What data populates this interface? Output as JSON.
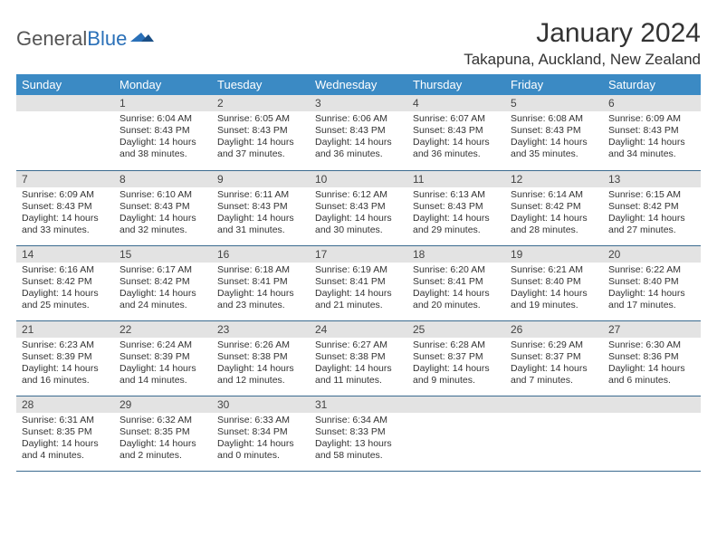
{
  "brand": {
    "part1": "General",
    "part2": "Blue"
  },
  "title": "January 2024",
  "location": "Takapuna, Auckland, New Zealand",
  "colors": {
    "header_bg": "#3b8ac4",
    "header_text": "#ffffff",
    "daynum_bg": "#e3e3e3",
    "row_border": "#3b6b8f",
    "brand_gray": "#555555",
    "brand_blue": "#2a70b8",
    "text": "#333333",
    "page_bg": "#ffffff"
  },
  "weekdays": [
    "Sunday",
    "Monday",
    "Tuesday",
    "Wednesday",
    "Thursday",
    "Friday",
    "Saturday"
  ],
  "weeks": [
    [
      {
        "n": ""
      },
      {
        "n": "1",
        "sr": "6:04 AM",
        "ss": "8:43 PM",
        "dl": "14 hours and 38 minutes."
      },
      {
        "n": "2",
        "sr": "6:05 AM",
        "ss": "8:43 PM",
        "dl": "14 hours and 37 minutes."
      },
      {
        "n": "3",
        "sr": "6:06 AM",
        "ss": "8:43 PM",
        "dl": "14 hours and 36 minutes."
      },
      {
        "n": "4",
        "sr": "6:07 AM",
        "ss": "8:43 PM",
        "dl": "14 hours and 36 minutes."
      },
      {
        "n": "5",
        "sr": "6:08 AM",
        "ss": "8:43 PM",
        "dl": "14 hours and 35 minutes."
      },
      {
        "n": "6",
        "sr": "6:09 AM",
        "ss": "8:43 PM",
        "dl": "14 hours and 34 minutes."
      }
    ],
    [
      {
        "n": "7",
        "sr": "6:09 AM",
        "ss": "8:43 PM",
        "dl": "14 hours and 33 minutes."
      },
      {
        "n": "8",
        "sr": "6:10 AM",
        "ss": "8:43 PM",
        "dl": "14 hours and 32 minutes."
      },
      {
        "n": "9",
        "sr": "6:11 AM",
        "ss": "8:43 PM",
        "dl": "14 hours and 31 minutes."
      },
      {
        "n": "10",
        "sr": "6:12 AM",
        "ss": "8:43 PM",
        "dl": "14 hours and 30 minutes."
      },
      {
        "n": "11",
        "sr": "6:13 AM",
        "ss": "8:43 PM",
        "dl": "14 hours and 29 minutes."
      },
      {
        "n": "12",
        "sr": "6:14 AM",
        "ss": "8:42 PM",
        "dl": "14 hours and 28 minutes."
      },
      {
        "n": "13",
        "sr": "6:15 AM",
        "ss": "8:42 PM",
        "dl": "14 hours and 27 minutes."
      }
    ],
    [
      {
        "n": "14",
        "sr": "6:16 AM",
        "ss": "8:42 PM",
        "dl": "14 hours and 25 minutes."
      },
      {
        "n": "15",
        "sr": "6:17 AM",
        "ss": "8:42 PM",
        "dl": "14 hours and 24 minutes."
      },
      {
        "n": "16",
        "sr": "6:18 AM",
        "ss": "8:41 PM",
        "dl": "14 hours and 23 minutes."
      },
      {
        "n": "17",
        "sr": "6:19 AM",
        "ss": "8:41 PM",
        "dl": "14 hours and 21 minutes."
      },
      {
        "n": "18",
        "sr": "6:20 AM",
        "ss": "8:41 PM",
        "dl": "14 hours and 20 minutes."
      },
      {
        "n": "19",
        "sr": "6:21 AM",
        "ss": "8:40 PM",
        "dl": "14 hours and 19 minutes."
      },
      {
        "n": "20",
        "sr": "6:22 AM",
        "ss": "8:40 PM",
        "dl": "14 hours and 17 minutes."
      }
    ],
    [
      {
        "n": "21",
        "sr": "6:23 AM",
        "ss": "8:39 PM",
        "dl": "14 hours and 16 minutes."
      },
      {
        "n": "22",
        "sr": "6:24 AM",
        "ss": "8:39 PM",
        "dl": "14 hours and 14 minutes."
      },
      {
        "n": "23",
        "sr": "6:26 AM",
        "ss": "8:38 PM",
        "dl": "14 hours and 12 minutes."
      },
      {
        "n": "24",
        "sr": "6:27 AM",
        "ss": "8:38 PM",
        "dl": "14 hours and 11 minutes."
      },
      {
        "n": "25",
        "sr": "6:28 AM",
        "ss": "8:37 PM",
        "dl": "14 hours and 9 minutes."
      },
      {
        "n": "26",
        "sr": "6:29 AM",
        "ss": "8:37 PM",
        "dl": "14 hours and 7 minutes."
      },
      {
        "n": "27",
        "sr": "6:30 AM",
        "ss": "8:36 PM",
        "dl": "14 hours and 6 minutes."
      }
    ],
    [
      {
        "n": "28",
        "sr": "6:31 AM",
        "ss": "8:35 PM",
        "dl": "14 hours and 4 minutes."
      },
      {
        "n": "29",
        "sr": "6:32 AM",
        "ss": "8:35 PM",
        "dl": "14 hours and 2 minutes."
      },
      {
        "n": "30",
        "sr": "6:33 AM",
        "ss": "8:34 PM",
        "dl": "14 hours and 0 minutes."
      },
      {
        "n": "31",
        "sr": "6:34 AM",
        "ss": "8:33 PM",
        "dl": "13 hours and 58 minutes."
      },
      {
        "n": ""
      },
      {
        "n": ""
      },
      {
        "n": ""
      }
    ]
  ],
  "labels": {
    "sunrise": "Sunrise:",
    "sunset": "Sunset:",
    "daylight": "Daylight:"
  }
}
